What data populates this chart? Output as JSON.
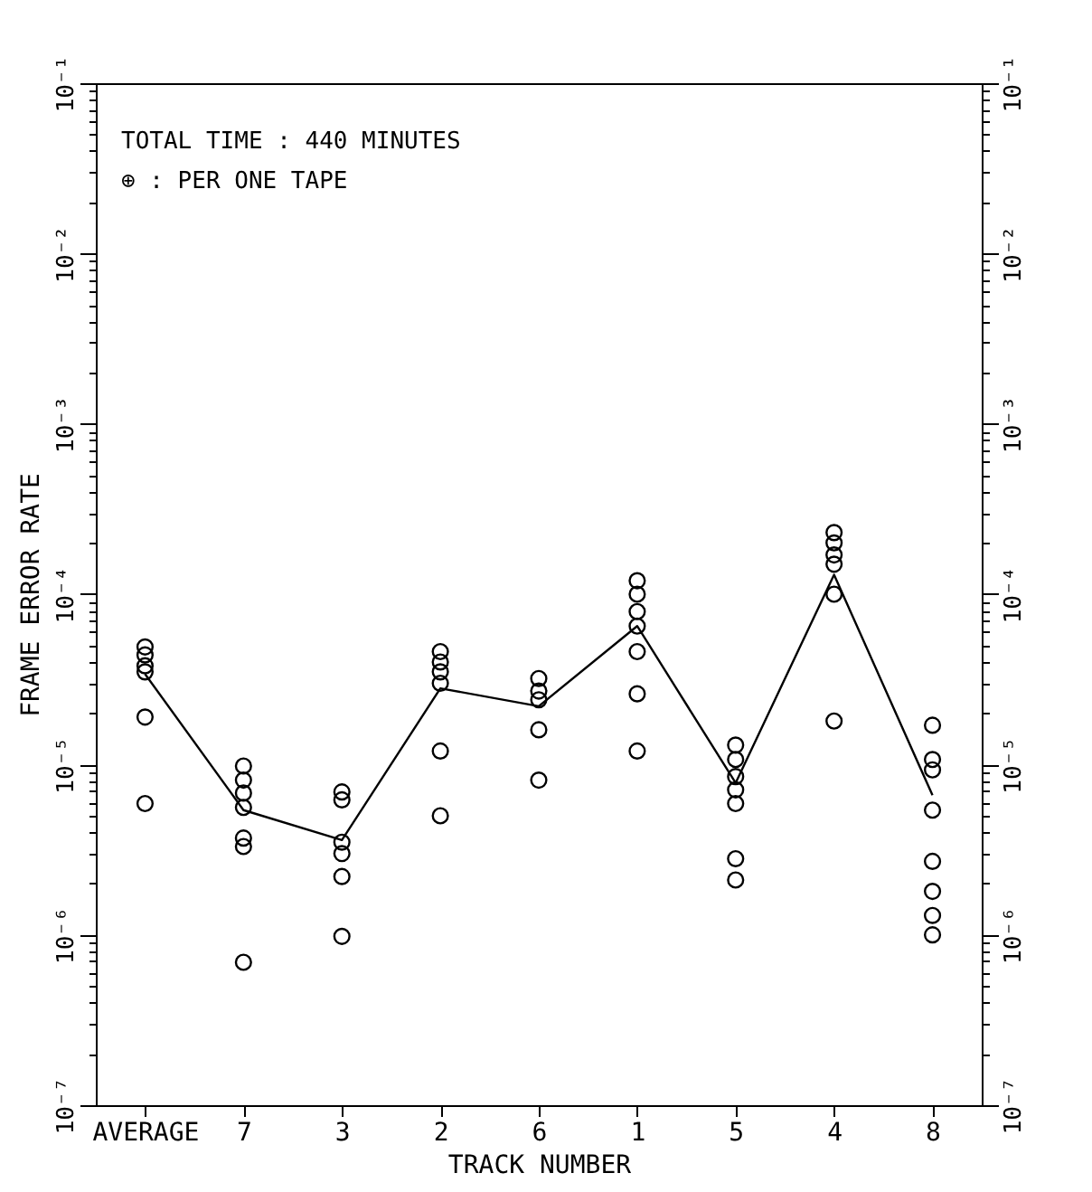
{
  "chart_data": {
    "type": "line",
    "xlabel": "TRACK NUMBER",
    "ylabel": "FRAME ERROR RATE",
    "log": "y",
    "grid": false,
    "annotations": [
      "TOTAL TIME : 440  MINUTES",
      "⊕ : PER ONE TAPE"
    ],
    "categories": [
      "AVERAGE",
      "7",
      "3",
      "2",
      "6",
      "1",
      "5",
      "4",
      "8"
    ],
    "ylim": [
      1e-07,
      0.1
    ],
    "yticks": [
      {
        "value": 1e-07,
        "label": "10⁻⁷"
      },
      {
        "value": 2e-07,
        "label": null
      },
      {
        "value": 3e-07,
        "label": null
      },
      {
        "value": 4e-07,
        "label": null
      },
      {
        "value": 5e-07,
        "label": null
      },
      {
        "value": 6e-07,
        "label": null
      },
      {
        "value": 7e-07,
        "label": null
      },
      {
        "value": 8e-07,
        "label": null
      },
      {
        "value": 9e-07,
        "label": null
      },
      {
        "value": 1e-06,
        "label": "10⁻⁶"
      },
      {
        "value": 2e-06,
        "label": null
      },
      {
        "value": 3e-06,
        "label": null
      },
      {
        "value": 4e-06,
        "label": null
      },
      {
        "value": 5e-06,
        "label": null
      },
      {
        "value": 6e-06,
        "label": null
      },
      {
        "value": 7e-06,
        "label": null
      },
      {
        "value": 8e-06,
        "label": null
      },
      {
        "value": 9e-06,
        "label": null
      },
      {
        "value": 1e-05,
        "label": "10⁻⁵"
      },
      {
        "value": 2e-05,
        "label": null
      },
      {
        "value": 3e-05,
        "label": null
      },
      {
        "value": 4e-05,
        "label": null
      },
      {
        "value": 5e-05,
        "label": null
      },
      {
        "value": 6e-05,
        "label": null
      },
      {
        "value": 7e-05,
        "label": null
      },
      {
        "value": 8e-05,
        "label": null
      },
      {
        "value": 9e-05,
        "label": null
      },
      {
        "value": 0.0001,
        "label": "10⁻⁴"
      },
      {
        "value": 0.0002,
        "label": null
      },
      {
        "value": 0.0003,
        "label": null
      },
      {
        "value": 0.0004,
        "label": null
      },
      {
        "value": 0.0005,
        "label": null
      },
      {
        "value": 0.0006,
        "label": null
      },
      {
        "value": 0.0007,
        "label": null
      },
      {
        "value": 0.0008,
        "label": null
      },
      {
        "value": 0.0009,
        "label": null
      },
      {
        "value": 0.001,
        "label": "10⁻³"
      },
      {
        "value": 0.002,
        "label": null
      },
      {
        "value": 0.003,
        "label": null
      },
      {
        "value": 0.004,
        "label": null
      },
      {
        "value": 0.005,
        "label": null
      },
      {
        "value": 0.006,
        "label": null
      },
      {
        "value": 0.007,
        "label": null
      },
      {
        "value": 0.008,
        "label": null
      },
      {
        "value": 0.009,
        "label": null
      },
      {
        "value": 0.01,
        "label": "10⁻²"
      },
      {
        "value": 0.02,
        "label": null
      },
      {
        "value": 0.03,
        "label": null
      },
      {
        "value": 0.04,
        "label": null
      },
      {
        "value": 0.05,
        "label": null
      },
      {
        "value": 0.06,
        "label": null
      },
      {
        "value": 0.07,
        "label": null
      },
      {
        "value": 0.08,
        "label": null
      },
      {
        "value": 0.09,
        "label": null
      },
      {
        "value": 0.1,
        "label": "10⁻¹"
      }
    ],
    "series": [
      {
        "color": "#000000",
        "line_style": "solid",
        "values": [
          3.4e-05,
          5.4e-06,
          3.6e-06,
          2.8e-05,
          2.2e-05,
          6.5e-05,
          7.8e-06,
          0.00013,
          6.6e-06
        ]
      },
      {
        "type": "scatter",
        "color": "#000000",
        "marker": "circle",
        "x": [
          "AVERAGE",
          "AVERAGE",
          "AVERAGE",
          "AVERAGE",
          "AVERAGE",
          "AVERAGE",
          "7",
          "7",
          "7",
          "7",
          "7",
          "7",
          "7",
          "3",
          "3",
          "3",
          "3",
          "3",
          "3",
          "2",
          "2",
          "2",
          "2",
          "2",
          "2",
          "6",
          "6",
          "6",
          "6",
          "6",
          "1",
          "1",
          "1",
          "1",
          "1",
          "1",
          "1",
          "5",
          "5",
          "5",
          "5",
          "5",
          "5",
          "5",
          "4",
          "4",
          "4",
          "4",
          "4",
          "4",
          "8",
          "8",
          "8",
          "8",
          "8",
          "8",
          "8",
          "8"
        ],
        "values": [
          4.9e-05,
          4.4e-05,
          3.8e-05,
          3.5e-05,
          1.9e-05,
          5.9e-06,
          9.8e-06,
          8.1e-06,
          6.8e-06,
          5.6e-06,
          3.7e-06,
          3.3e-06,
          6.9e-07,
          6.9e-06,
          6.2e-06,
          3.5e-06,
          3e-06,
          2.2e-06,
          9.8e-07,
          4.6e-05,
          4e-05,
          3.5e-05,
          3e-05,
          1.2e-05,
          5e-06,
          3.2e-05,
          2.7e-05,
          2.4e-05,
          1.6e-05,
          8.1e-06,
          0.00012,
          0.0001,
          7.9e-05,
          6.5e-05,
          4.6e-05,
          2.6e-05,
          1.2e-05,
          1.3e-05,
          1.07e-05,
          8.5e-06,
          7.1e-06,
          5.9e-06,
          2.8e-06,
          2.1e-06,
          0.00023,
          0.0002,
          0.00017,
          0.00015,
          0.0001,
          1.8e-05,
          1.7e-05,
          1.07e-05,
          9.3e-06,
          5.4e-06,
          2.7e-06,
          1.8e-06,
          1.3e-06,
          1e-06
        ]
      }
    ]
  }
}
